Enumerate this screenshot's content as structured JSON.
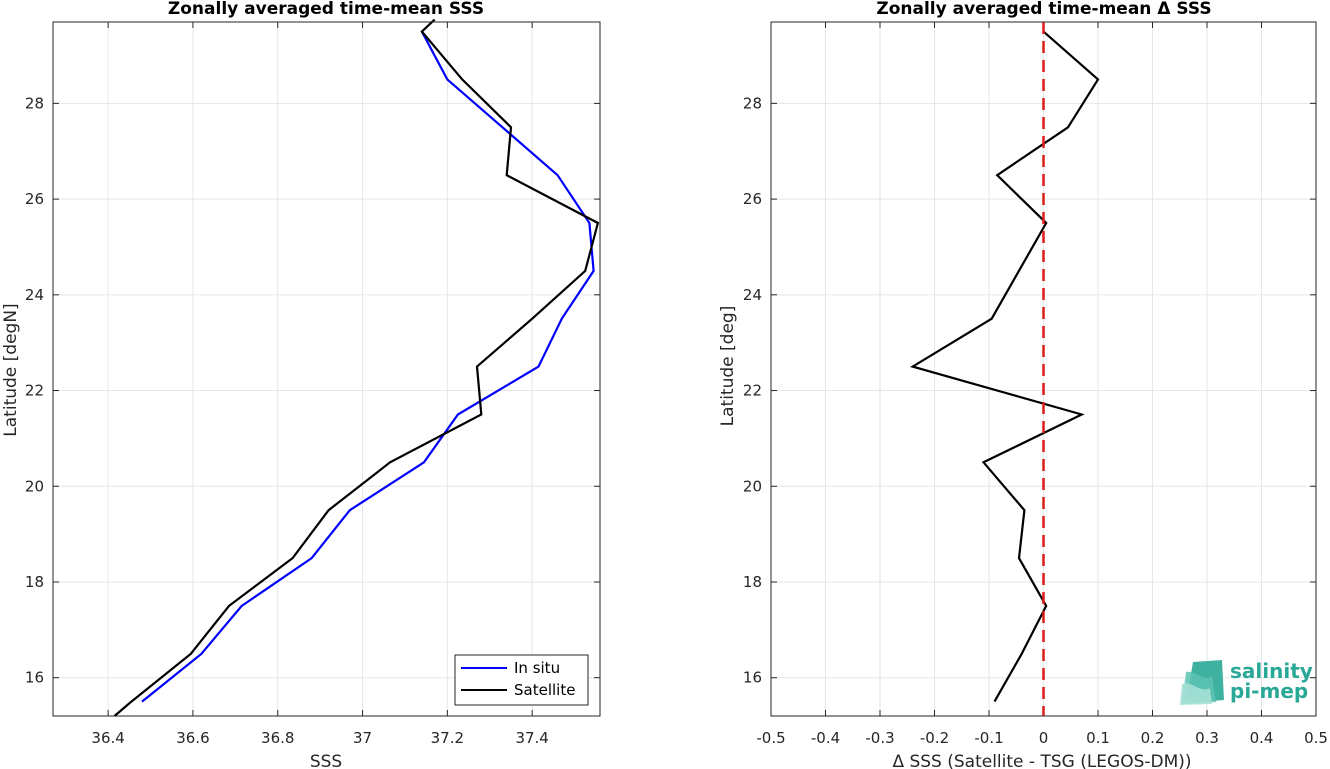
{
  "chart_data": [
    {
      "type": "line",
      "title": "Zonally averaged time-mean SSS",
      "xlabel": "SSS",
      "ylabel": "Latitude [degN]",
      "xlim": [
        36.27,
        37.56
      ],
      "ylim": [
        15.2,
        29.7
      ],
      "xticks": [
        "36.4",
        "36.6",
        "36.8",
        "37",
        "37.2",
        "37.4"
      ],
      "yticks": [
        "16",
        "18",
        "20",
        "22",
        "24",
        "26",
        "28"
      ],
      "grid": true,
      "legend": "bottom-right",
      "series": [
        {
          "name": "In situ",
          "color": "#0000ff",
          "x": [
            37.14,
            37.2,
            37.46,
            37.535,
            37.545,
            37.47,
            37.415,
            37.225,
            37.145,
            36.97,
            36.88,
            36.715,
            36.62,
            36.48
          ],
          "y": [
            29.5,
            28.5,
            26.5,
            25.5,
            24.5,
            23.5,
            22.5,
            21.5,
            20.5,
            19.5,
            18.5,
            17.5,
            16.5,
            15.5
          ]
        },
        {
          "name": "Satellite",
          "color": "#000000",
          "x": [
            37.17,
            37.14,
            37.235,
            37.35,
            37.34,
            37.555,
            37.525,
            37.4,
            37.27,
            37.28,
            37.065,
            36.92,
            36.835,
            36.685,
            36.595,
            36.455,
            36.415
          ],
          "y": [
            29.75,
            29.5,
            28.5,
            27.5,
            26.5,
            25.5,
            24.5,
            23.5,
            22.5,
            21.5,
            20.5,
            19.5,
            18.5,
            17.5,
            16.5,
            15.5,
            15.2
          ]
        }
      ]
    },
    {
      "type": "line",
      "title": "Zonally averaged time-mean Δ SSS",
      "xlabel": "Δ SSS (Satellite - TSG (LEGOS-DM))",
      "ylabel": "Latitude [deg]",
      "xlim": [
        -0.5,
        0.5
      ],
      "ylim": [
        15.2,
        29.7
      ],
      "xticks": [
        "-0.5",
        "-0.4",
        "-0.3",
        "-0.2",
        "-0.1",
        "0",
        "0.1",
        "0.2",
        "0.3",
        "0.4",
        "0.5"
      ],
      "yticks": [
        "16",
        "18",
        "20",
        "22",
        "24",
        "26",
        "28"
      ],
      "grid": true,
      "reference_line": {
        "x": 0,
        "color": "#dd1c1c",
        "style": "dashed"
      },
      "series": [
        {
          "color": "#000000",
          "x": [
            0.0,
            0.1,
            0.045,
            -0.085,
            0.005,
            -0.095,
            -0.24,
            0.07,
            -0.11,
            -0.035,
            -0.045,
            0.005,
            -0.04,
            -0.09
          ],
          "y": [
            29.5,
            28.5,
            27.5,
            26.5,
            25.5,
            23.5,
            22.5,
            21.5,
            20.5,
            19.5,
            18.5,
            17.5,
            16.5,
            15.5
          ]
        }
      ]
    }
  ],
  "logo": {
    "line1": "salinity",
    "line2": "pi-mep"
  }
}
